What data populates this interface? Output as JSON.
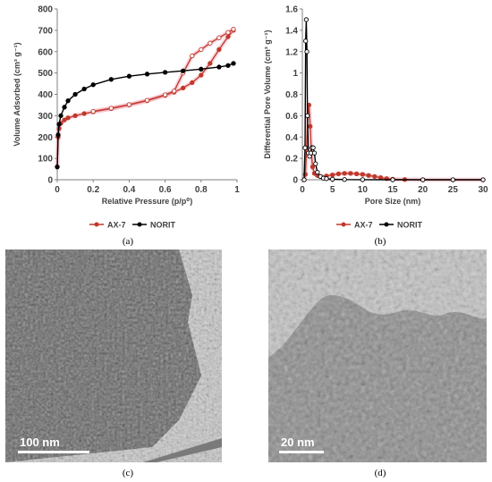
{
  "chart_data": [
    {
      "type": "line",
      "panel": "(a)",
      "xlabel": "Relative Pressure (p/p⁰)",
      "ylabel": "Volume Adsorbed (cm³ g⁻¹)",
      "xlim": [
        0,
        1
      ],
      "ylim": [
        0,
        800
      ],
      "xticks": [
        "0",
        "0.2",
        "0.4",
        "0.6",
        "0.8",
        "1"
      ],
      "yticks": [
        "0",
        "100",
        "200",
        "300",
        "400",
        "500",
        "600",
        "700",
        "800"
      ],
      "legend_position": "bottom",
      "series": [
        {
          "name": "AX-7",
          "color": "#c0392b",
          "x": [
            0.0,
            0.005,
            0.01,
            0.02,
            0.04,
            0.06,
            0.1,
            0.15,
            0.2,
            0.3,
            0.4,
            0.5,
            0.6,
            0.65,
            0.7,
            0.75,
            0.8,
            0.85,
            0.9,
            0.95,
            0.98
          ],
          "y": [
            60,
            200,
            240,
            265,
            280,
            290,
            300,
            310,
            318,
            333,
            350,
            370,
            395,
            410,
            430,
            455,
            490,
            545,
            610,
            670,
            700
          ]
        },
        {
          "name": "AX-7 desorption",
          "color": "#c0392b",
          "x": [
            0.98,
            0.95,
            0.9,
            0.85,
            0.8,
            0.75,
            0.7,
            0.65,
            0.6,
            0.5,
            0.4,
            0.3,
            0.2
          ],
          "y": [
            705,
            690,
            665,
            640,
            610,
            580,
            500,
            415,
            398,
            372,
            352,
            335,
            320
          ]
        },
        {
          "name": "NORIT",
          "color": "#000000",
          "x": [
            0.0,
            0.005,
            0.01,
            0.02,
            0.04,
            0.06,
            0.1,
            0.15,
            0.2,
            0.3,
            0.4,
            0.5,
            0.6,
            0.7,
            0.8,
            0.9,
            0.95,
            0.98
          ],
          "y": [
            60,
            210,
            260,
            300,
            340,
            370,
            400,
            425,
            445,
            470,
            485,
            495,
            503,
            510,
            518,
            528,
            535,
            545
          ]
        }
      ],
      "legend": [
        "AX-7",
        "NORIT"
      ]
    },
    {
      "type": "line",
      "panel": "(b)",
      "xlabel": "Pore Size (nm)",
      "ylabel": "Differential Pore Volume (cm³ g⁻¹)",
      "xlim": [
        0,
        30
      ],
      "ylim": [
        0,
        1.6
      ],
      "xticks": [
        "0",
        "5",
        "10",
        "15",
        "20",
        "25",
        "30"
      ],
      "yticks": [
        "0",
        "0.2",
        "0.4",
        "0.6",
        "0.8",
        "1",
        "1.2",
        "1.4",
        "1.6"
      ],
      "legend_position": "bottom",
      "series": [
        {
          "name": "AX-7",
          "color": "#c0392b",
          "x": [
            0.3,
            0.5,
            0.7,
            0.9,
            1.1,
            1.3,
            1.5,
            1.7,
            2.0,
            2.5,
            3,
            4,
            5,
            6,
            7,
            8,
            9,
            10,
            11,
            12,
            13,
            14,
            15,
            17,
            20,
            25,
            30
          ],
          "y": [
            0.0,
            0.05,
            0.3,
            0.6,
            0.7,
            0.5,
            0.25,
            0.12,
            0.06,
            0.04,
            0.03,
            0.035,
            0.045,
            0.055,
            0.06,
            0.06,
            0.055,
            0.05,
            0.04,
            0.03,
            0.02,
            0.01,
            0.005,
            0.002,
            0.0,
            0.0,
            0.0
          ]
        },
        {
          "name": "NORIT",
          "color": "#000000",
          "x": [
            0.3,
            0.45,
            0.55,
            0.65,
            0.75,
            0.85,
            1.0,
            1.2,
            1.4,
            1.6,
            1.8,
            2.0,
            2.2,
            2.5,
            3,
            3.5,
            4,
            5,
            7,
            10,
            15,
            20,
            25,
            30
          ],
          "y": [
            0.0,
            0.3,
            1.3,
            1.5,
            1.2,
            0.6,
            0.25,
            0.22,
            0.25,
            0.3,
            0.3,
            0.25,
            0.15,
            0.07,
            0.03,
            0.015,
            0.01,
            0.005,
            0.002,
            0.001,
            0.0,
            0.0,
            0.0,
            0.0
          ]
        }
      ],
      "legend": [
        "AX-7",
        "NORIT"
      ]
    }
  ],
  "captions": {
    "a": "(a)",
    "b": "(b)",
    "c": "(c)",
    "d": "(d)"
  },
  "images": {
    "c_scalebar": "100 nm",
    "d_scalebar": "20 nm"
  }
}
